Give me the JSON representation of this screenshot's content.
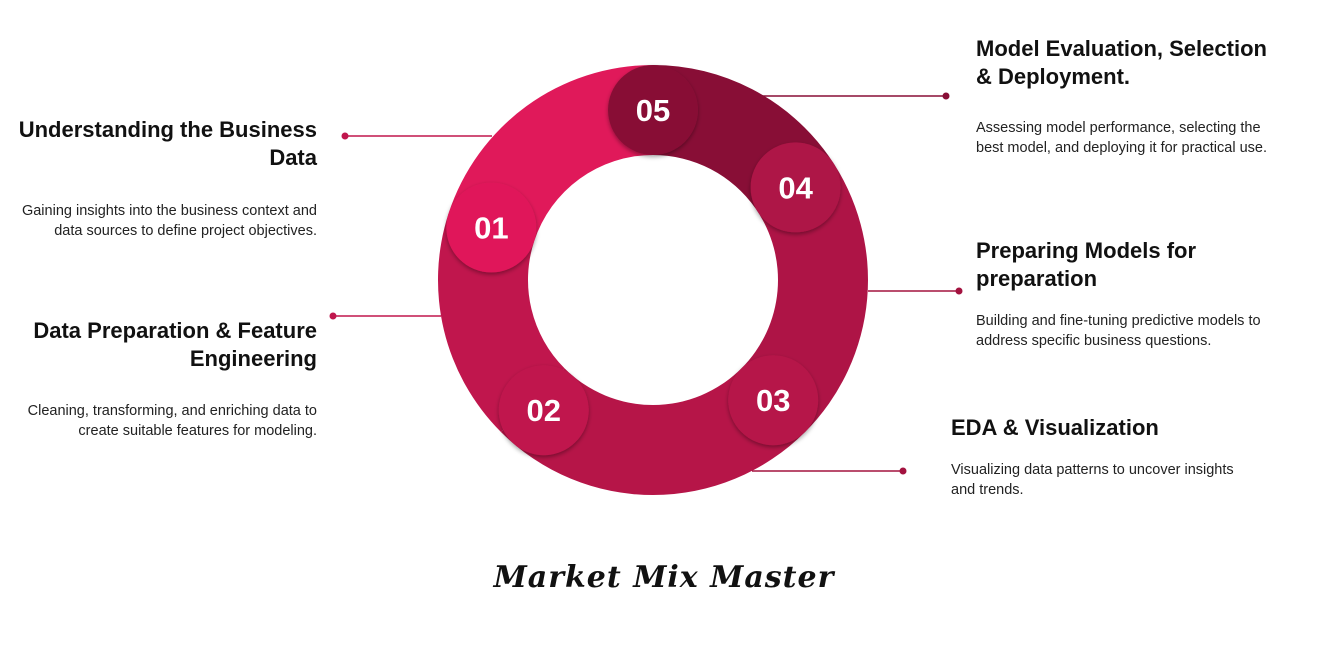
{
  "steps": [
    {
      "number": "01",
      "title": "Understanding the Business Data",
      "description": "Gaining insights into the business context and data sources to define project objectives.",
      "color": "#E0195A"
    },
    {
      "number": "02",
      "title": "Data Preparation & Feature Engineering",
      "description": "Cleaning, transforming, and enriching data to create suitable features for modeling.",
      "color": "#C0164D"
    },
    {
      "number": "03",
      "title": "EDA & Visualization",
      "description": "Visualizing data patterns to uncover insights and trends.",
      "color": "#B61548"
    },
    {
      "number": "04",
      "title": "Preparing Models for preparation",
      "description": "Building and fine-tuning predictive models to address specific business questions.",
      "color": "#AE1446"
    },
    {
      "number": "05",
      "title": "Model Evaluation, Selection & Deployment.",
      "description": "Assessing model performance, selecting the best model, and deploying it for practical use.",
      "color": "#880E36"
    }
  ],
  "brand": "Market Mix Master"
}
